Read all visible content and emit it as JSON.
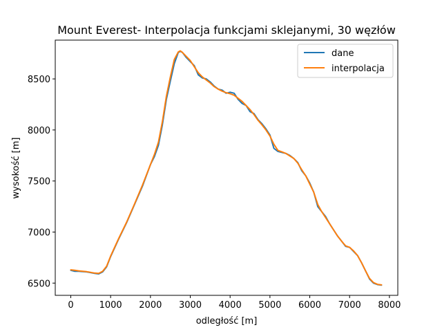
{
  "chart_data": {
    "type": "line",
    "title": "Mount Everest- Interpolacja funkcjami sklejanymi, 30 węzłów",
    "xlabel": "odległość [m]",
    "ylabel": "wysokość [m]",
    "xlim": [
      -390,
      8210
    ],
    "ylim": [
      6380,
      8880
    ],
    "xticks": [
      0,
      1000,
      2000,
      3000,
      4000,
      5000,
      6000,
      7000,
      8000
    ],
    "yticks": [
      6500,
      7000,
      7500,
      8000,
      8500
    ],
    "grid": false,
    "legend_position": "top-right",
    "series": [
      {
        "name": "dane",
        "color": "#1f77b4",
        "x": [
          0,
          100,
          200,
          400,
          600,
          700,
          800,
          900,
          1000,
          1200,
          1400,
          1600,
          1800,
          2000,
          2100,
          2200,
          2300,
          2400,
          2500,
          2600,
          2700,
          2750,
          2800,
          2900,
          3000,
          3100,
          3200,
          3300,
          3400,
          3500,
          3600,
          3700,
          3800,
          3900,
          4000,
          4100,
          4200,
          4300,
          4400,
          4500,
          4600,
          4700,
          4800,
          4900,
          5000,
          5100,
          5200,
          5300,
          5400,
          5500,
          5600,
          5700,
          5800,
          5900,
          6000,
          6100,
          6200,
          6300,
          6400,
          6500,
          6600,
          6700,
          6800,
          6900,
          7000,
          7100,
          7200,
          7300,
          7400,
          7500,
          7600,
          7700,
          7800
        ],
        "y": [
          6625,
          6615,
          6615,
          6610,
          6595,
          6590,
          6610,
          6660,
          6760,
          6930,
          7090,
          7270,
          7450,
          7660,
          7740,
          7850,
          8050,
          8300,
          8480,
          8650,
          8760,
          8770,
          8760,
          8710,
          8670,
          8630,
          8540,
          8510,
          8500,
          8470,
          8430,
          8400,
          8390,
          8360,
          8370,
          8360,
          8300,
          8260,
          8240,
          8180,
          8160,
          8100,
          8060,
          8010,
          7950,
          7820,
          7790,
          7780,
          7770,
          7750,
          7720,
          7680,
          7600,
          7550,
          7480,
          7390,
          7250,
          7200,
          7150,
          7080,
          7020,
          6960,
          6910,
          6860,
          6850,
          6810,
          6770,
          6700,
          6620,
          6540,
          6500,
          6485,
          6480
        ]
      },
      {
        "name": "interpolacja",
        "color": "#ff7f0e",
        "x": [
          0,
          100,
          200,
          400,
          600,
          700,
          800,
          900,
          1000,
          1200,
          1400,
          1600,
          1800,
          2000,
          2100,
          2200,
          2300,
          2400,
          2500,
          2600,
          2700,
          2750,
          2800,
          2900,
          3000,
          3100,
          3200,
          3300,
          3400,
          3500,
          3600,
          3700,
          3800,
          3900,
          4000,
          4100,
          4200,
          4300,
          4400,
          4500,
          4600,
          4700,
          4800,
          4900,
          5000,
          5100,
          5200,
          5300,
          5400,
          5500,
          5600,
          5700,
          5800,
          5900,
          6000,
          6100,
          6200,
          6300,
          6400,
          6500,
          6600,
          6700,
          6800,
          6900,
          7000,
          7100,
          7200,
          7300,
          7400,
          7500,
          7600,
          7700,
          7800
        ],
        "y": [
          6630,
          6625,
          6620,
          6612,
          6598,
          6595,
          6615,
          6665,
          6765,
          6935,
          7095,
          7275,
          7460,
          7660,
          7760,
          7880,
          8080,
          8330,
          8520,
          8690,
          8765,
          8775,
          8760,
          8720,
          8680,
          8620,
          8560,
          8520,
          8490,
          8460,
          8425,
          8400,
          8380,
          8365,
          8355,
          8340,
          8310,
          8280,
          8240,
          8200,
          8150,
          8095,
          8050,
          8000,
          7940,
          7860,
          7800,
          7785,
          7770,
          7745,
          7720,
          7675,
          7610,
          7550,
          7470,
          7390,
          7270,
          7200,
          7140,
          7080,
          7020,
          6960,
          6910,
          6865,
          6850,
          6815,
          6770,
          6700,
          6620,
          6545,
          6505,
          6488,
          6482
        ]
      }
    ]
  }
}
